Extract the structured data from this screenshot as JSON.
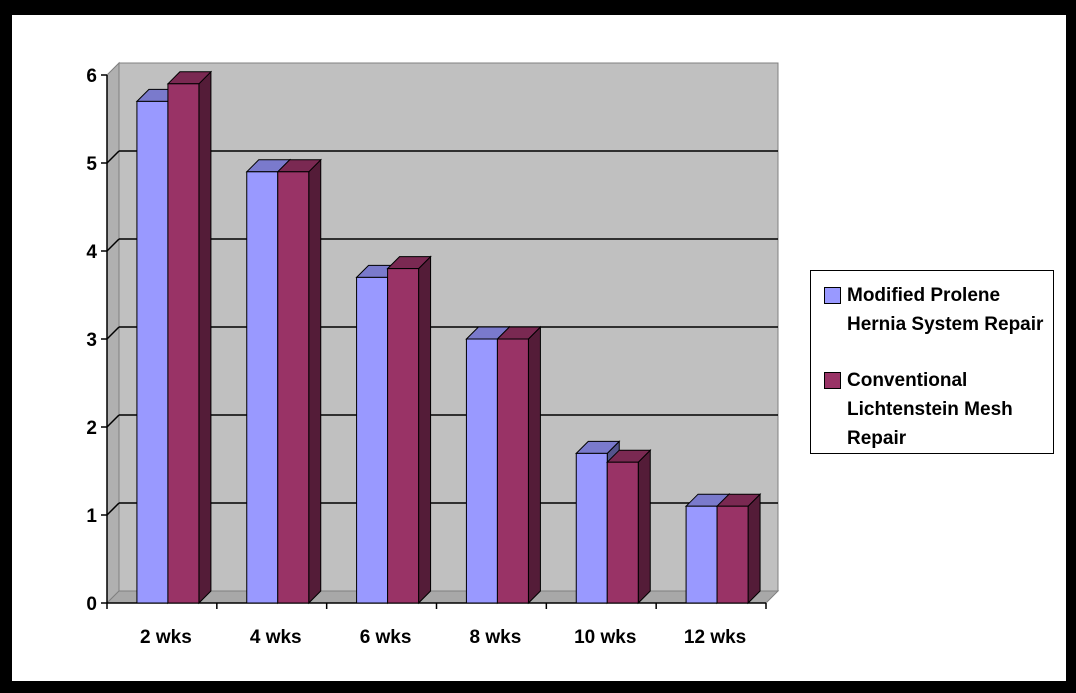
{
  "chart_data": {
    "type": "bar",
    "categories": [
      "2 wks",
      "4 wks",
      "6 wks",
      "8 wks",
      "10 wks",
      "12 wks"
    ],
    "series": [
      {
        "name": "Modified Prolene Hernia System Repair",
        "values": [
          5.7,
          4.9,
          3.7,
          3.0,
          1.7,
          1.1
        ],
        "color": "#9999ff"
      },
      {
        "name": "Conventional Lichtenstein Mesh Repair",
        "values": [
          5.9,
          4.9,
          3.8,
          3.0,
          1.6,
          1.1
        ],
        "color": "#993366"
      }
    ],
    "yticks": [
      "0",
      "1",
      "2",
      "3",
      "4",
      "5",
      "6"
    ],
    "ylim": [
      0,
      6
    ],
    "grid": true,
    "legend_position": "right",
    "plot_background": "#c0c0c0"
  }
}
